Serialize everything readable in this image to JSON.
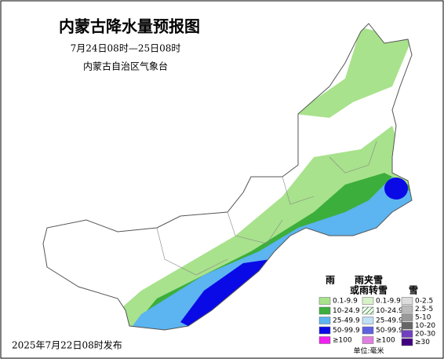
{
  "header": {
    "title": "内蒙古降水量预报图",
    "period": "7月24日08时—25日08时",
    "issuer": "内蒙古自治区气象台"
  },
  "legend": {
    "rain": {
      "title": "雨",
      "items": [
        "0.1-9.9",
        "10-24.9",
        "25-49.9",
        "50-99.9",
        "≥100"
      ]
    },
    "mixed": {
      "title": [
        "雨夹雪",
        "或雨转雪"
      ],
      "items": [
        "0.1-9.9",
        "10-24.9",
        "25-49.9",
        "50-99.9",
        "≥100"
      ]
    },
    "snow": {
      "title": "雪",
      "items": [
        "0-2.5",
        "2.5-5",
        "5-10",
        "10-20",
        "20-30",
        "≥30"
      ]
    },
    "unit": "单位:毫米"
  },
  "footer": {
    "issued": "2025年7月22日08时发布"
  }
}
